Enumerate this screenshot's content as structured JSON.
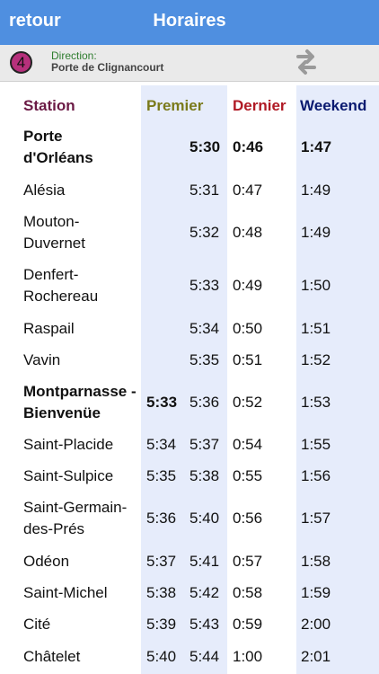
{
  "nav": {
    "back_label": "retour",
    "title": "Horaires"
  },
  "direction": {
    "line_number": "4",
    "line_color": "#b6307c",
    "label": "Direction:",
    "value": "Porte de Clignancourt",
    "swap_icon": "swap-arrows-icon"
  },
  "columns": {
    "station": {
      "label": "Station",
      "color": "#6b1a45"
    },
    "premier": {
      "label": "Premier",
      "color": "#7a7a1a"
    },
    "dernier": {
      "label": "Dernier",
      "color": "#b01a25"
    },
    "weekend": {
      "label": "Weekend",
      "color": "#0a1a70"
    }
  },
  "rows": [
    {
      "station": "Porte d'Orléans",
      "premier_alt": "",
      "premier": "5:30",
      "dernier": "0:46",
      "weekend": "1:47",
      "bold": true
    },
    {
      "station": "Alésia",
      "premier_alt": "",
      "premier": "5:31",
      "dernier": "0:47",
      "weekend": "1:49",
      "bold": false
    },
    {
      "station": "Mouton-Duvernet",
      "premier_alt": "",
      "premier": "5:32",
      "dernier": "0:48",
      "weekend": "1:49",
      "bold": false
    },
    {
      "station": "Denfert-Rochereau",
      "premier_alt": "",
      "premier": "5:33",
      "dernier": "0:49",
      "weekend": "1:50",
      "bold": false
    },
    {
      "station": "Raspail",
      "premier_alt": "",
      "premier": "5:34",
      "dernier": "0:50",
      "weekend": "1:51",
      "bold": false
    },
    {
      "station": "Vavin",
      "premier_alt": "",
      "premier": "5:35",
      "dernier": "0:51",
      "weekend": "1:52",
      "bold": false
    },
    {
      "station": "Montparnasse - Bienvenüe",
      "premier_alt": "5:33",
      "premier": "5:36",
      "dernier": "0:52",
      "weekend": "1:53",
      "bold": true
    },
    {
      "station": "Saint-Placide",
      "premier_alt": "5:34",
      "premier": "5:37",
      "dernier": "0:54",
      "weekend": "1:55",
      "bold": false
    },
    {
      "station": "Saint-Sulpice",
      "premier_alt": "5:35",
      "premier": "5:38",
      "dernier": "0:55",
      "weekend": "1:56",
      "bold": false
    },
    {
      "station": "Saint-Germain-des-Prés",
      "premier_alt": "5:36",
      "premier": "5:40",
      "dernier": "0:56",
      "weekend": "1:57",
      "bold": false
    },
    {
      "station": "Odéon",
      "premier_alt": "5:37",
      "premier": "5:41",
      "dernier": "0:57",
      "weekend": "1:58",
      "bold": false
    },
    {
      "station": "Saint-Michel",
      "premier_alt": "5:38",
      "premier": "5:42",
      "dernier": "0:58",
      "weekend": "1:59",
      "bold": false
    },
    {
      "station": "Cité",
      "premier_alt": "5:39",
      "premier": "5:43",
      "dernier": "0:59",
      "weekend": "2:00",
      "bold": false
    },
    {
      "station": "Châtelet",
      "premier_alt": "5:40",
      "premier": "5:44",
      "dernier": "1:00",
      "weekend": "2:01",
      "bold": false
    }
  ]
}
